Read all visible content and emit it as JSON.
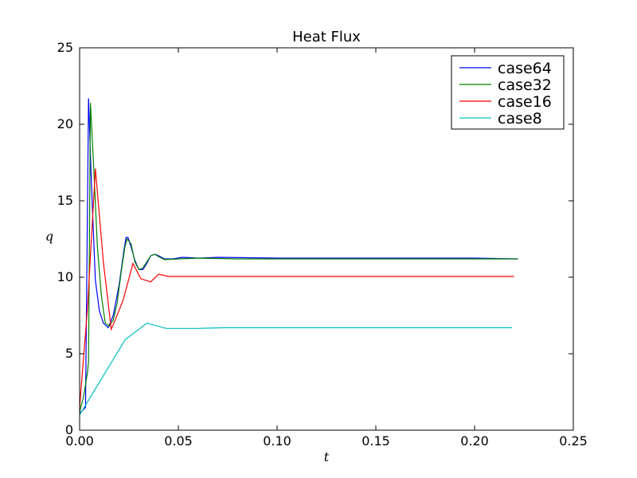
{
  "chart_data": {
    "type": "line",
    "title": "Heat Flux",
    "xlabel": "t",
    "ylabel": "q",
    "xlim": [
      0.0,
      0.25
    ],
    "ylim": [
      0,
      25
    ],
    "xticks": [
      "0.00",
      "0.05",
      "0.10",
      "0.15",
      "0.20",
      "0.25"
    ],
    "xtick_values": [
      0.0,
      0.05,
      0.1,
      0.15,
      0.2,
      0.25
    ],
    "yticks": [
      "0",
      "5",
      "10",
      "15",
      "20",
      "25"
    ],
    "ytick_values": [
      0,
      5,
      10,
      15,
      20,
      25
    ],
    "grid": false,
    "legend_position": "top-right",
    "series": [
      {
        "name": "case64",
        "color": "#0000ff",
        "points": [
          [
            0.0,
            1.1
          ],
          [
            0.003,
            1.5
          ],
          [
            0.0045,
            21.7
          ],
          [
            0.006,
            16.0
          ],
          [
            0.008,
            9.8
          ],
          [
            0.01,
            7.8
          ],
          [
            0.012,
            7.0
          ],
          [
            0.0145,
            6.7
          ],
          [
            0.017,
            7.5
          ],
          [
            0.02,
            9.5
          ],
          [
            0.0225,
            11.8
          ],
          [
            0.0235,
            12.6
          ],
          [
            0.0245,
            12.6
          ],
          [
            0.026,
            12.0
          ],
          [
            0.028,
            11.1
          ],
          [
            0.03,
            10.5
          ],
          [
            0.032,
            10.5
          ],
          [
            0.034,
            10.9
          ],
          [
            0.036,
            11.4
          ],
          [
            0.038,
            11.5
          ],
          [
            0.04,
            11.4
          ],
          [
            0.043,
            11.2
          ],
          [
            0.047,
            11.2
          ],
          [
            0.052,
            11.3
          ],
          [
            0.06,
            11.25
          ],
          [
            0.07,
            11.3
          ],
          [
            0.1,
            11.25
          ],
          [
            0.15,
            11.25
          ],
          [
            0.2,
            11.25
          ],
          [
            0.222,
            11.2
          ]
        ]
      },
      {
        "name": "case32",
        "color": "#008000",
        "points": [
          [
            0.0,
            1.2
          ],
          [
            0.002,
            2.2
          ],
          [
            0.004,
            3.8
          ],
          [
            0.0045,
            4.5
          ],
          [
            0.0055,
            21.4
          ],
          [
            0.007,
            17.5
          ],
          [
            0.009,
            12.0
          ],
          [
            0.011,
            8.8
          ],
          [
            0.013,
            7.0
          ],
          [
            0.015,
            6.8
          ],
          [
            0.017,
            7.2
          ],
          [
            0.019,
            8.3
          ],
          [
            0.021,
            10.3
          ],
          [
            0.023,
            12.0
          ],
          [
            0.024,
            12.5
          ],
          [
            0.026,
            12.2
          ],
          [
            0.028,
            11.0
          ],
          [
            0.03,
            10.5
          ],
          [
            0.032,
            10.6
          ],
          [
            0.034,
            11.0
          ],
          [
            0.036,
            11.4
          ],
          [
            0.038,
            11.5
          ],
          [
            0.04,
            11.35
          ],
          [
            0.043,
            11.15
          ],
          [
            0.05,
            11.2
          ],
          [
            0.06,
            11.25
          ],
          [
            0.08,
            11.2
          ],
          [
            0.12,
            11.2
          ],
          [
            0.18,
            11.2
          ],
          [
            0.222,
            11.2
          ]
        ]
      },
      {
        "name": "case16",
        "color": "#ff0000",
        "points": [
          [
            0.0,
            1.5
          ],
          [
            0.004,
            8.0
          ],
          [
            0.008,
            17.1
          ],
          [
            0.012,
            11.0
          ],
          [
            0.016,
            6.6
          ],
          [
            0.018,
            7.2
          ],
          [
            0.022,
            8.5
          ],
          [
            0.027,
            10.9
          ],
          [
            0.031,
            9.9
          ],
          [
            0.036,
            9.7
          ],
          [
            0.04,
            10.2
          ],
          [
            0.045,
            10.05
          ],
          [
            0.055,
            10.05
          ],
          [
            0.07,
            10.05
          ],
          [
            0.1,
            10.05
          ],
          [
            0.15,
            10.05
          ],
          [
            0.22,
            10.05
          ]
        ]
      },
      {
        "name": "case8",
        "color": "#00bfbf",
        "points": [
          [
            0.0,
            1.0
          ],
          [
            0.023,
            5.9
          ],
          [
            0.034,
            7.0
          ],
          [
            0.044,
            6.65
          ],
          [
            0.06,
            6.65
          ],
          [
            0.072,
            6.7
          ],
          [
            0.1,
            6.7
          ],
          [
            0.15,
            6.7
          ],
          [
            0.219,
            6.7
          ]
        ]
      }
    ]
  }
}
